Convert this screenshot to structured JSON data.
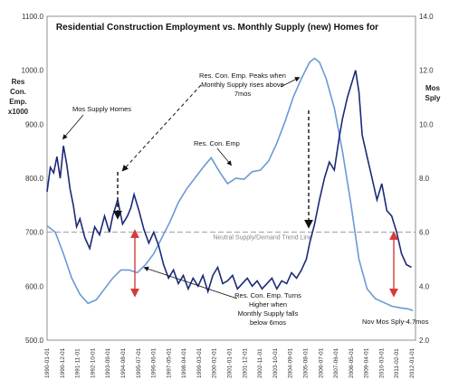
{
  "chart_data": {
    "type": "line",
    "title": "Residential Construction Employment vs. Monthly Supply (new) Homes for",
    "y_left_label": [
      "Res",
      "Con.",
      "Emp.",
      "x1000"
    ],
    "y_right_label": [
      "Mos",
      "Sply"
    ],
    "y_left_ticks": [
      "1100.0",
      "1000.0",
      "900.0",
      "800.0",
      "700.0",
      "600.0",
      "500.0"
    ],
    "y_right_ticks": [
      "14.0",
      "12.0",
      "10.0",
      "8.0",
      "6.0",
      "4.0",
      "2.0"
    ],
    "ylim_left": [
      500,
      1100
    ],
    "ylim_right": [
      2,
      14
    ],
    "x_ticks": [
      "1990-01-01",
      "1990-12-01",
      "1991-11-01",
      "1992-10-01",
      "1993-09-01",
      "1994-08-01",
      "1995-07-01",
      "1996-06-01",
      "1997-05-01",
      "1998-04-01",
      "1999-03-01",
      "2000-02-01",
      "2001-01-01",
      "2001-12-01",
      "2002-11-01",
      "2003-10-01",
      "2004-09-01",
      "2005-08-01",
      "2006-07-01",
      "2007-06-01",
      "2008-05-01",
      "2009-04-01",
      "2010-03-01",
      "2011-02-01",
      "2012-01-01"
    ],
    "series": [
      {
        "legend_text": "Res. Con. Emp",
        "color": "#6a9ad4",
        "x": [
          1990.0,
          1990.5,
          1991.0,
          1991.5,
          1992.0,
          1992.5,
          1993.0,
          1993.5,
          1994.0,
          1994.5,
          1995.0,
          1995.5,
          1996.0,
          1996.5,
          1997.0,
          1997.5,
          1998.0,
          1998.5,
          1999.0,
          1999.5,
          2000.0,
          2000.5,
          2001.0,
          2001.5,
          2002.0,
          2002.5,
          2003.0,
          2003.5,
          2004.0,
          2004.5,
          2005.0,
          2005.5,
          2006.0,
          2006.3,
          2006.6,
          2007.0,
          2007.5,
          2008.0,
          2008.5,
          2009.0,
          2009.5,
          2010.0,
          2010.5,
          2011.0,
          2011.5,
          2012.0,
          2012.3
        ],
        "values": [
          712,
          700,
          660,
          615,
          585,
          568,
          575,
          595,
          615,
          630,
          630,
          625,
          640,
          660,
          690,
          720,
          755,
          780,
          800,
          820,
          838,
          812,
          790,
          800,
          798,
          812,
          815,
          832,
          865,
          905,
          950,
          985,
          1015,
          1022,
          1015,
          985,
          930,
          850,
          755,
          650,
          595,
          577,
          570,
          563,
          560,
          558,
          555
        ]
      },
      {
        "legend_text": "Mos Supply Homes",
        "color": "#1b2a78",
        "x": [
          1990.0,
          1990.2,
          1990.4,
          1990.6,
          1990.8,
          1991.0,
          1991.2,
          1991.4,
          1991.6,
          1991.8,
          1992.0,
          1992.3,
          1992.6,
          1992.9,
          1993.2,
          1993.5,
          1993.8,
          1994.0,
          1994.3,
          1994.6,
          1994.9,
          1995.1,
          1995.3,
          1995.6,
          1995.9,
          1996.2,
          1996.5,
          1996.8,
          1997.1,
          1997.4,
          1997.7,
          1998.0,
          1998.3,
          1998.6,
          1998.9,
          1999.2,
          1999.5,
          1999.8,
          2000.1,
          2000.4,
          2000.7,
          2001.0,
          2001.3,
          2001.6,
          2001.9,
          2002.2,
          2002.5,
          2002.8,
          2003.1,
          2003.4,
          2003.7,
          2004.0,
          2004.3,
          2004.6,
          2004.9,
          2005.2,
          2005.5,
          2005.8,
          2006.0,
          2006.3,
          2006.6,
          2006.9,
          2007.2,
          2007.5,
          2007.8,
          2008.0,
          2008.3,
          2008.6,
          2008.8,
          2009.0,
          2009.2,
          2009.5,
          2009.8,
          2010.1,
          2010.4,
          2010.7,
          2011.0,
          2011.3,
          2011.6,
          2011.9,
          2012.2
        ],
        "values": [
          7.5,
          8.4,
          8.2,
          8.8,
          8.0,
          9.2,
          8.5,
          7.6,
          7.0,
          6.2,
          6.5,
          5.8,
          5.4,
          6.2,
          5.9,
          6.6,
          6.0,
          6.6,
          7.2,
          6.3,
          6.6,
          6.9,
          7.4,
          6.8,
          6.1,
          5.6,
          6.0,
          5.5,
          4.8,
          4.3,
          4.6,
          4.1,
          4.4,
          3.9,
          4.3,
          4.0,
          4.4,
          3.8,
          4.4,
          4.7,
          4.1,
          4.2,
          4.4,
          3.9,
          4.1,
          4.3,
          4.0,
          4.2,
          3.9,
          4.1,
          4.3,
          3.9,
          4.2,
          4.1,
          4.5,
          4.3,
          4.6,
          5.0,
          5.6,
          6.3,
          7.2,
          8.0,
          8.6,
          8.3,
          9.5,
          10.2,
          11.0,
          11.6,
          12.0,
          11.2,
          9.6,
          8.8,
          8.0,
          7.2,
          7.8,
          6.8,
          6.6,
          6.0,
          5.2,
          4.8,
          4.7
        ]
      }
    ],
    "reference_line": {
      "y_right": 6.0,
      "label": "Neutral Supply/Demand Trend Line"
    },
    "annotations": [
      {
        "lines": [
          "Mos Supply Homes"
        ]
      },
      {
        "lines": [
          "Res. Con. Emp"
        ]
      },
      {
        "lines": [
          "Res. Con. Emp. Peaks when",
          "Monthly Supply rises above",
          "7mos"
        ]
      },
      {
        "lines": [
          "Res. Con. Emp. Turns",
          "Higher when",
          "Monthly Supply falls",
          "below 6mos"
        ]
      },
      {
        "lines": [
          "Nov Mos Sply-4.7mos"
        ]
      }
    ]
  }
}
